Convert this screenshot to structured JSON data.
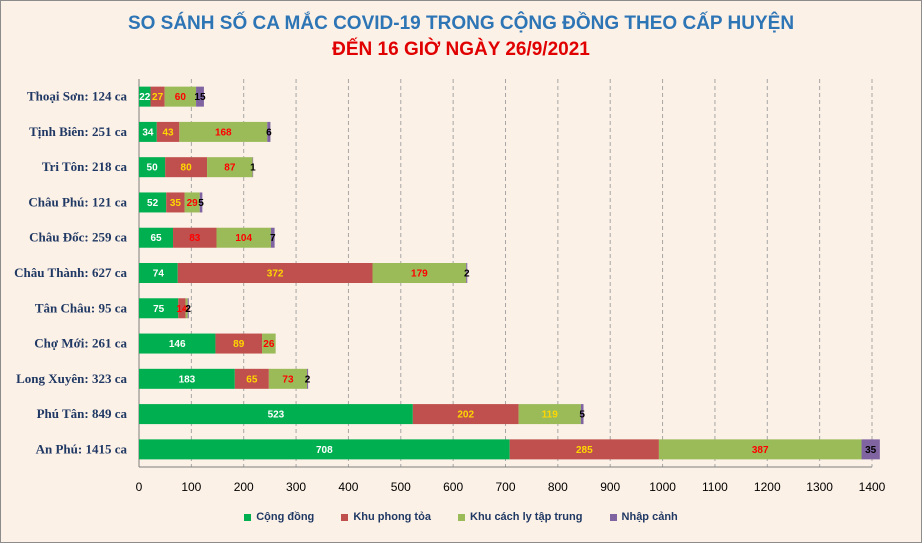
{
  "header": {
    "title": "SO SÁNH SỐ CA MẮC COVID-19 TRONG CỘNG ĐỒNG THEO CẤP HUYỆN",
    "subtitle": "ĐẾN 16 GIỜ NGÀY 26/9/2021"
  },
  "chart_data": {
    "type": "bar",
    "orientation": "horizontal",
    "stacked": true,
    "title": "SO SÁNH SỐ CA MẮC COVID-19 TRONG CỘNG ĐỒNG THEO CẤP HUYỆN",
    "subtitle": "ĐẾN 16 GIỜ NGÀY 26/9/2021",
    "categories": [
      "Thoại  Sơn: 124 ca",
      "Tịnh Biên: 251 ca",
      "Tri Tôn: 218 ca",
      "Châu Phú: 121 ca",
      "Châu Đốc: 259 ca",
      "Châu Thành: 627 ca",
      "Tân Châu: 95 ca",
      "Chợ Mới: 261 ca",
      "Long Xuyên: 323 ca",
      "Phú Tân: 849 ca",
      "An Phú: 1415 ca"
    ],
    "series": [
      {
        "name": "Cộng đồng",
        "color": "#00b050",
        "label_color": "#ffffff",
        "values": [
          22,
          34,
          50,
          52,
          65,
          74,
          75,
          146,
          183,
          523,
          708
        ]
      },
      {
        "name": "Khu phong tỏa",
        "color": "#c0504d",
        "label_color": "#ffd700",
        "values": [
          27,
          43,
          80,
          35,
          83,
          372,
          14,
          89,
          65,
          202,
          285
        ]
      },
      {
        "name": "Khu cách ly tập trung",
        "color": "#9bbb59",
        "label_color": "#ff0000",
        "values": [
          60,
          168,
          87,
          29,
          104,
          179,
          4,
          26,
          73,
          119,
          387
        ]
      },
      {
        "name": "Nhập cảnh",
        "color": "#8064a2",
        "label_color": "#000000",
        "values": [
          15,
          6,
          1,
          5,
          7,
          2,
          2,
          0,
          2,
          5,
          35
        ]
      }
    ],
    "label_colors": [
      [
        "#ffffff",
        "#ffd700",
        "#ff0000",
        "#000000"
      ],
      [
        "#ffffff",
        "#ffd700",
        "#ff0000",
        "#000000"
      ],
      [
        "#ffffff",
        "#ffd700",
        "#ff0000",
        "#000000"
      ],
      [
        "#ffffff",
        "#ffd700",
        "#ff0000",
        "#000000"
      ],
      [
        "#ffffff",
        "#ff0000",
        "#ff0000",
        "#000000"
      ],
      [
        "#ffffff",
        "#ffd700",
        "#ff0000",
        "#000000"
      ],
      [
        "#ffffff",
        "#ff0000",
        "#ff0000",
        "#000000"
      ],
      [
        "#ffffff",
        "#ffd700",
        "#ff0000",
        "#000000"
      ],
      [
        "#ffffff",
        "#ffd700",
        "#ff0000",
        "#000000"
      ],
      [
        "#ffffff",
        "#ffd700",
        "#ffd700",
        "#000000"
      ],
      [
        "#ffffff",
        "#ffd700",
        "#ff0000",
        "#000000"
      ]
    ],
    "xlim": [
      0,
      1400
    ],
    "xticks": [
      0,
      100,
      200,
      300,
      400,
      500,
      600,
      700,
      800,
      900,
      1000,
      1100,
      1200,
      1300,
      1400
    ],
    "grid": "vertical dashed",
    "legend": "bottom"
  },
  "legend_items": [
    {
      "label": "Cộng đồng",
      "color": "#00b050"
    },
    {
      "label": "Khu phong tỏa",
      "color": "#c0504d"
    },
    {
      "label": "Khu cách ly tập trung",
      "color": "#9bbb59"
    },
    {
      "label": "Nhập cảnh",
      "color": "#8064a2"
    }
  ]
}
